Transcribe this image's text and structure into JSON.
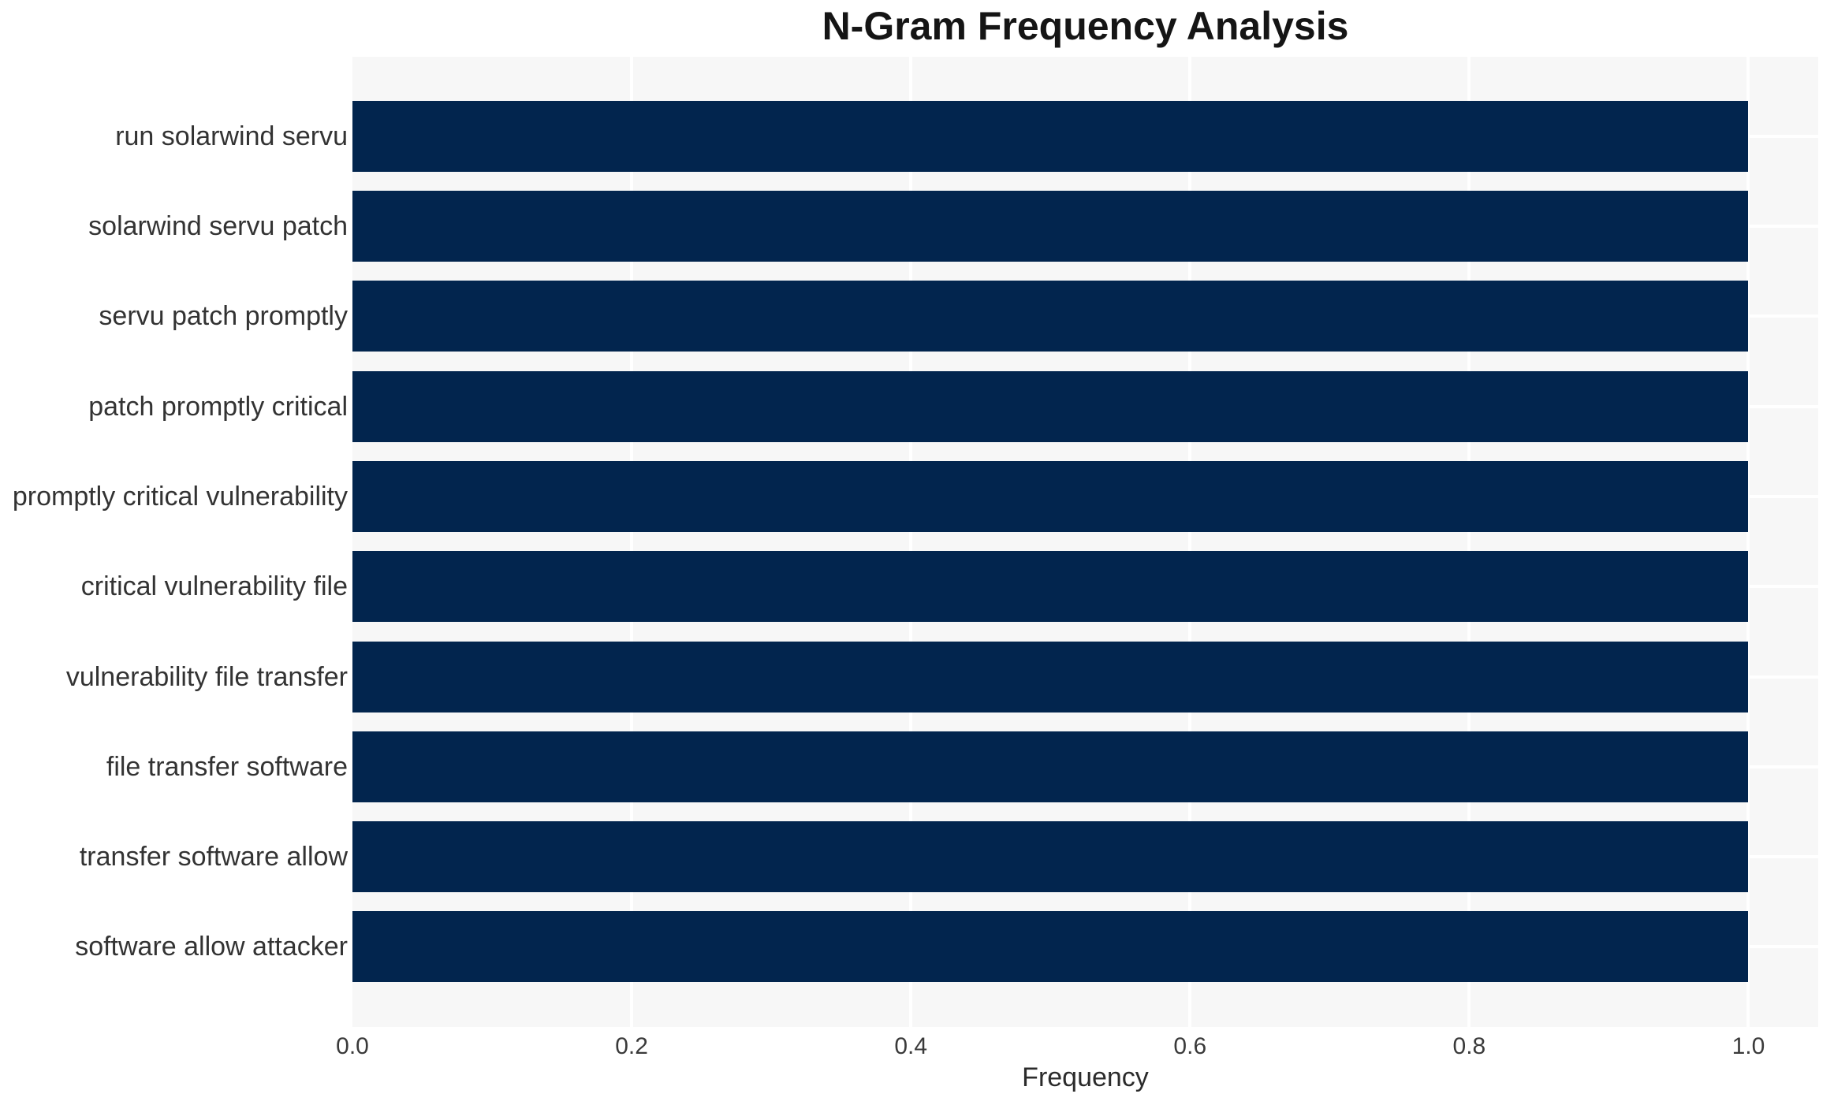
{
  "title": "N-Gram Frequency Analysis",
  "colors": {
    "bar": "#02254e",
    "plot_background": "#f7f7f7",
    "gridline": "#ffffff",
    "title_text": "#151515",
    "tick_text": "#333333"
  },
  "chart_data": {
    "type": "bar",
    "orientation": "horizontal",
    "title": "N-Gram Frequency Analysis",
    "xlabel": "Frequency",
    "ylabel": "",
    "categories": [
      "run solarwind servu",
      "solarwind servu patch",
      "servu patch promptly",
      "patch promptly critical",
      "promptly critical vulnerability",
      "critical vulnerability file",
      "vulnerability file transfer",
      "file transfer software",
      "transfer software allow",
      "software allow attacker"
    ],
    "values": [
      1.0,
      1.0,
      1.0,
      1.0,
      1.0,
      1.0,
      1.0,
      1.0,
      1.0,
      1.0
    ],
    "xticks": [
      0.0,
      0.2,
      0.4,
      0.6,
      0.8,
      1.0
    ],
    "xlim": [
      0,
      1.05
    ],
    "grid": true,
    "legend": false
  }
}
